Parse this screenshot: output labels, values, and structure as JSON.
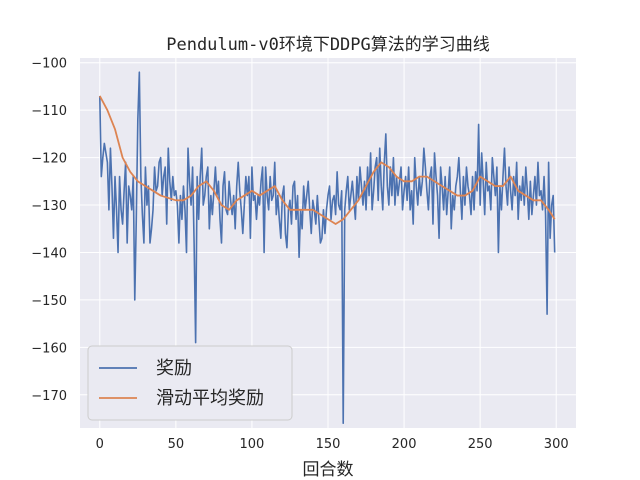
{
  "chart_data": {
    "type": "line",
    "title": "Pendulum-v0环境下DDPG算法的学习曲线",
    "xlabel": "回合数",
    "ylabel": "",
    "xlim": [
      -13,
      313
    ],
    "ylim": [
      -177,
      -99
    ],
    "xticks": [
      0,
      50,
      100,
      150,
      200,
      250,
      300
    ],
    "yticks": [
      -100,
      -110,
      -120,
      -130,
      -140,
      -150,
      -160,
      -170
    ],
    "grid": true,
    "legend_position": "lower-left",
    "series": [
      {
        "name": "奖励",
        "color": "#4c72b0",
        "x": [
          0,
          1,
          2,
          3,
          4,
          5,
          6,
          7,
          8,
          9,
          10,
          11,
          12,
          13,
          14,
          15,
          16,
          17,
          18,
          19,
          20,
          21,
          22,
          23,
          24,
          25,
          26,
          27,
          28,
          29,
          30,
          31,
          32,
          33,
          34,
          35,
          36,
          37,
          38,
          39,
          40,
          41,
          42,
          43,
          44,
          45,
          46,
          47,
          48,
          49,
          50,
          51,
          52,
          53,
          54,
          55,
          56,
          57,
          58,
          59,
          60,
          61,
          62,
          63,
          64,
          65,
          66,
          67,
          68,
          69,
          70,
          71,
          72,
          73,
          74,
          75,
          76,
          77,
          78,
          79,
          80,
          81,
          82,
          83,
          84,
          85,
          86,
          87,
          88,
          89,
          90,
          91,
          92,
          93,
          94,
          95,
          96,
          97,
          98,
          99,
          100,
          101,
          102,
          103,
          104,
          105,
          106,
          107,
          108,
          109,
          110,
          111,
          112,
          113,
          114,
          115,
          116,
          117,
          118,
          119,
          120,
          121,
          122,
          123,
          124,
          125,
          126,
          127,
          128,
          129,
          130,
          131,
          132,
          133,
          134,
          135,
          136,
          137,
          138,
          139,
          140,
          141,
          142,
          143,
          144,
          145,
          146,
          147,
          148,
          149,
          150,
          151,
          152,
          153,
          154,
          155,
          156,
          157,
          158,
          159,
          160,
          161,
          162,
          163,
          164,
          165,
          166,
          167,
          168,
          169,
          170,
          171,
          172,
          173,
          174,
          175,
          176,
          177,
          178,
          179,
          180,
          181,
          182,
          183,
          184,
          185,
          186,
          187,
          188,
          189,
          190,
          191,
          192,
          193,
          194,
          195,
          196,
          197,
          198,
          199,
          200,
          201,
          202,
          203,
          204,
          205,
          206,
          207,
          208,
          209,
          210,
          211,
          212,
          213,
          214,
          215,
          216,
          217,
          218,
          219,
          220,
          221,
          222,
          223,
          224,
          225,
          226,
          227,
          228,
          229,
          230,
          231,
          232,
          233,
          234,
          235,
          236,
          237,
          238,
          239,
          240,
          241,
          242,
          243,
          244,
          245,
          246,
          247,
          248,
          249,
          250,
          251,
          252,
          253,
          254,
          255,
          256,
          257,
          258,
          259,
          260,
          261,
          262,
          263,
          264,
          265,
          266,
          267,
          268,
          269,
          270,
          271,
          272,
          273,
          274,
          275,
          276,
          277,
          278,
          279,
          280,
          281,
          282,
          283,
          284,
          285,
          286,
          287,
          288,
          289,
          290,
          291,
          292,
          293,
          294,
          295,
          296,
          297,
          298,
          299
        ],
        "values": [
          -107,
          -124,
          -120,
          -117,
          -119,
          -121,
          -131,
          -118,
          -126,
          -137,
          -124,
          -131,
          -140,
          -124,
          -131,
          -134,
          -127,
          -121,
          -138,
          -126,
          -128,
          -131,
          -124,
          -150,
          -133,
          -112,
          -102,
          -124,
          -132,
          -138,
          -122,
          -130,
          -126,
          -138,
          -135,
          -131,
          -122,
          -127,
          -126,
          -121,
          -120,
          -128,
          -124,
          -122,
          -134,
          -118,
          -125,
          -129,
          -124,
          -128,
          -127,
          -130,
          -138,
          -128,
          -133,
          -126,
          -131,
          -140,
          -118,
          -125,
          -130,
          -122,
          -138,
          -159,
          -124,
          -133,
          -124,
          -118,
          -130,
          -128,
          -124,
          -122,
          -135,
          -128,
          -132,
          -127,
          -122,
          -128,
          -125,
          -133,
          -138,
          -126,
          -123,
          -131,
          -132,
          -125,
          -129,
          -132,
          -128,
          -135,
          -126,
          -121,
          -127,
          -131,
          -136,
          -130,
          -124,
          -128,
          -124,
          -137,
          -122,
          -129,
          -128,
          -133,
          -128,
          -130,
          -125,
          -122,
          -140,
          -122,
          -128,
          -131,
          -124,
          -129,
          -128,
          -121,
          -132,
          -128,
          -133,
          -137,
          -128,
          -126,
          -136,
          -139,
          -131,
          -129,
          -134,
          -126,
          -125,
          -133,
          -128,
          -141,
          -131,
          -135,
          -126,
          -131,
          -128,
          -125,
          -131,
          -136,
          -129,
          -131,
          -134,
          -128,
          -133,
          -138,
          -137,
          -131,
          -136,
          -131,
          -128,
          -126,
          -133,
          -129,
          -128,
          -132,
          -123,
          -130,
          -131,
          -127,
          -176,
          -131,
          -127,
          -124,
          -131,
          -128,
          -125,
          -129,
          -133,
          -124,
          -129,
          -122,
          -126,
          -130,
          -125,
          -131,
          -122,
          -128,
          -119,
          -131,
          -127,
          -122,
          -120,
          -129,
          -118,
          -126,
          -131,
          -121,
          -115,
          -126,
          -130,
          -122,
          -128,
          -120,
          -130,
          -124,
          -128,
          -125,
          -122,
          -131,
          -127,
          -124,
          -129,
          -122,
          -131,
          -127,
          -134,
          -120,
          -126,
          -130,
          -124,
          -128,
          -125,
          -118,
          -122,
          -127,
          -131,
          -124,
          -122,
          -134,
          -119,
          -124,
          -128,
          -137,
          -122,
          -126,
          -131,
          -124,
          -132,
          -127,
          -122,
          -135,
          -128,
          -131,
          -126,
          -124,
          -120,
          -127,
          -133,
          -124,
          -130,
          -122,
          -126,
          -128,
          -132,
          -124,
          -131,
          -123,
          -127,
          -113,
          -130,
          -119,
          -125,
          -132,
          -121,
          -127,
          -126,
          -131,
          -120,
          -124,
          -128,
          -122,
          -140,
          -126,
          -131,
          -124,
          -118,
          -126,
          -130,
          -122,
          -127,
          -131,
          -124,
          -128,
          -121,
          -133,
          -126,
          -129,
          -124,
          -130,
          -122,
          -127,
          -133,
          -125,
          -132,
          -128,
          -124,
          -130,
          -121,
          -128,
          -127,
          -131,
          -124,
          -132,
          -153,
          -121,
          -137,
          -130,
          -128,
          -140
        ]
      },
      {
        "name": "滑动平均奖励",
        "color": "#dd8452",
        "x": [
          0,
          5,
          10,
          15,
          20,
          25,
          30,
          35,
          40,
          45,
          50,
          55,
          60,
          65,
          70,
          75,
          80,
          85,
          90,
          95,
          100,
          105,
          110,
          115,
          120,
          125,
          130,
          135,
          140,
          145,
          150,
          155,
          160,
          165,
          170,
          175,
          180,
          185,
          190,
          195,
          200,
          205,
          210,
          215,
          220,
          225,
          230,
          235,
          240,
          245,
          250,
          255,
          260,
          265,
          270,
          275,
          280,
          285,
          290,
          295,
          299
        ],
        "values": [
          -107,
          -110,
          -114,
          -120,
          -123,
          -125,
          -126,
          -127,
          -128,
          -128.5,
          -129,
          -129,
          -128,
          -126,
          -125,
          -127,
          -130,
          -131,
          -129,
          -128,
          -127,
          -128,
          -127,
          -126,
          -129,
          -131,
          -131,
          -131,
          -131,
          -132,
          -133,
          -134,
          -133,
          -131,
          -129,
          -126,
          -123,
          -121,
          -122,
          -124,
          -125,
          -125,
          -124,
          -124,
          -125,
          -126,
          -127,
          -128,
          -128,
          -127,
          -124,
          -125,
          -126,
          -126,
          -124,
          -127,
          -128,
          -129,
          -129,
          -131,
          -133
        ]
      }
    ]
  }
}
